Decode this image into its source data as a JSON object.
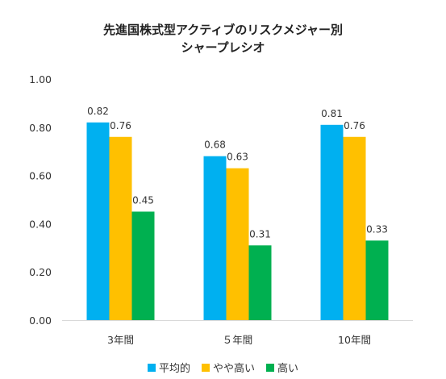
{
  "chart_data": {
    "type": "bar",
    "title": "先進国株式型アクティブのリスクメジャー別",
    "subtitle": "シャープレシオ",
    "categories": [
      "3年間",
      "５年間",
      "10年間"
    ],
    "series": [
      {
        "name": "平均的",
        "color": "#00B0F0",
        "values": [
          0.82,
          0.68,
          0.81
        ]
      },
      {
        "name": "やや高い",
        "color": "#FFC000",
        "values": [
          0.76,
          0.63,
          0.76
        ]
      },
      {
        "name": "高い",
        "color": "#00B050",
        "values": [
          0.45,
          0.31,
          0.33
        ]
      }
    ],
    "yticks": [
      "0.00",
      "0.20",
      "0.40",
      "0.60",
      "0.80",
      "1.00"
    ],
    "ylim": [
      0,
      1.0
    ],
    "grid": false,
    "legend_position": "bottom"
  }
}
